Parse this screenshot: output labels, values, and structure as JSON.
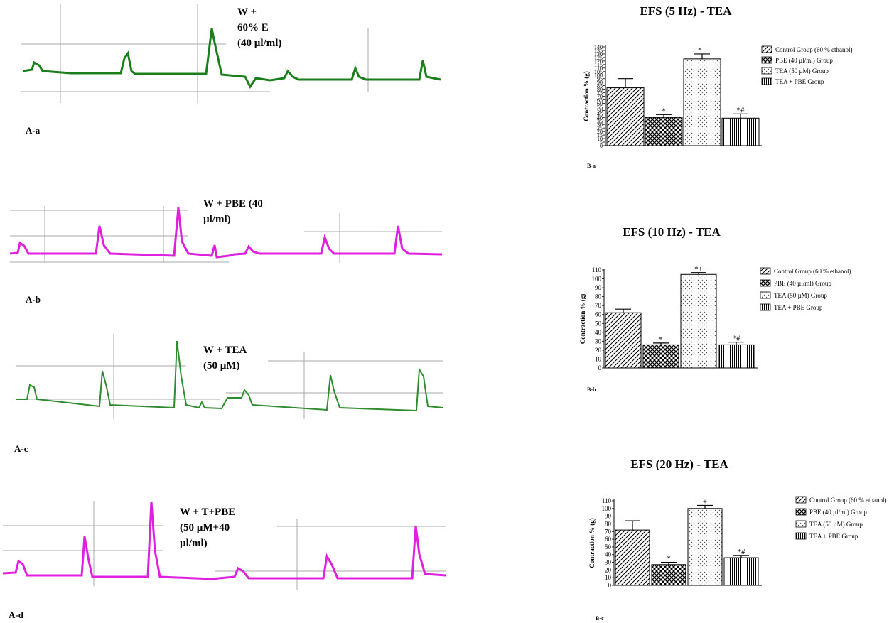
{
  "traces": [
    {
      "label_lines": [
        "W +",
        "60% E",
        "(40 µl/ml)"
      ],
      "tag": "A-a",
      "color": "#1a7f1a"
    },
    {
      "label_lines": [
        "W + PBE (40",
        "µl/ml)"
      ],
      "tag": "A-b",
      "color": "#e020e0"
    },
    {
      "label_lines": [
        "W + TEA",
        "(50 µM)"
      ],
      "tag": "A-c",
      "color": "#2e8b2e"
    },
    {
      "label_lines": [
        "W + T+PBE",
        "(50 µM+40",
        "µl/ml)"
      ],
      "tag": "A-d",
      "color": "#e020e0"
    }
  ],
  "chart_data": [
    {
      "type": "bar",
      "title": "EFS (5 Hz) - TEA",
      "sub_tag": "B-a",
      "ylabel": "Contraction % (g)",
      "ylim": [
        0,
        140
      ],
      "yticks": [
        0,
        5,
        10,
        15,
        20,
        25,
        30,
        35,
        40,
        45,
        50,
        55,
        60,
        65,
        70,
        75,
        80,
        85,
        90,
        95,
        100,
        105,
        110,
        115,
        120,
        125,
        130,
        135,
        140
      ],
      "categories": [
        "Control Group (60 % ethanol)",
        "PBE (40 µl/ml) Group",
        "TEA (50 µM) Group",
        "TEA + PBE Group"
      ],
      "values": [
        82,
        40,
        123,
        39
      ],
      "errors": [
        13,
        4,
        7,
        6
      ],
      "annotations": [
        "",
        "*",
        "*+",
        "*#"
      ]
    },
    {
      "type": "bar",
      "title": "EFS (10 Hz) - TEA",
      "sub_tag": "B-b",
      "ylabel": "Contraction % (g)",
      "ylim": [
        0,
        110
      ],
      "yticks": [
        0,
        10,
        20,
        30,
        40,
        50,
        60,
        70,
        80,
        90,
        100,
        110
      ],
      "categories": [
        "Control Group (60 % ethanol)",
        "PBE (40 µl/ml) Group",
        "TEA (50 µM) Group",
        "TEA + PBE Group"
      ],
      "values": [
        62,
        26,
        105,
        26
      ],
      "errors": [
        4,
        2,
        2,
        3
      ],
      "annotations": [
        "",
        "*",
        "*+",
        "*#"
      ]
    },
    {
      "type": "bar",
      "title": "EFS (20 Hz) - TEA",
      "sub_tag": "B-c",
      "ylabel": "Contraction % (g)",
      "ylim": [
        0,
        110
      ],
      "yticks": [
        0,
        10,
        20,
        30,
        40,
        50,
        60,
        70,
        80,
        90,
        100,
        110
      ],
      "categories": [
        "Control Group (60 % ethanol)",
        "PBE (40 µl/ml) Group",
        "TEA (50 µM) Group",
        "TEA + PBE Group"
      ],
      "values": [
        72,
        27,
        100,
        36
      ],
      "errors": [
        12,
        3,
        4,
        3
      ],
      "annotations": [
        "",
        "*",
        "+",
        "*#"
      ]
    }
  ]
}
